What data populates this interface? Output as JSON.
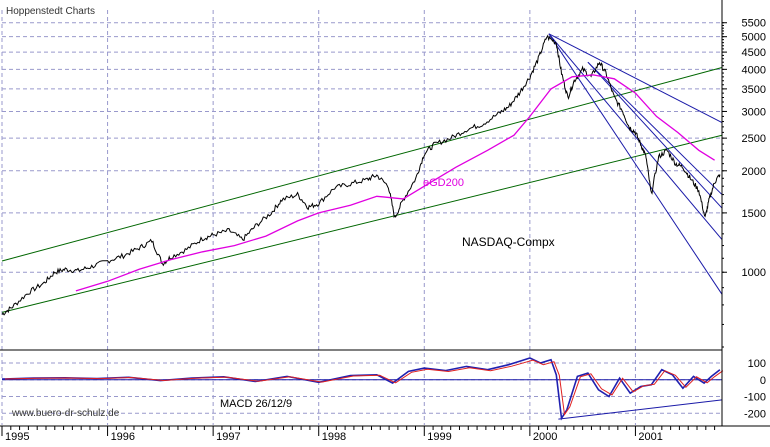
{
  "header": {
    "source_label": "Hoppenstedt Charts"
  },
  "footer": {
    "website": "www.buero-dr-schulz.de"
  },
  "colors": {
    "price": "#000000",
    "ema": "#e000e0",
    "channel": "#006600",
    "trend": "#1a1aa8",
    "grid": "#9999cc",
    "macd": "#2020b0",
    "signal": "#e02020"
  },
  "chart_data": [
    {
      "type": "line",
      "scale": "log",
      "title": "NASDAQ-Compx",
      "yticks": [
        1000,
        1500,
        2000,
        2500,
        3000,
        3500,
        4000,
        4500,
        5000,
        5500
      ],
      "ylim": [
        600,
        6000
      ],
      "x_labels": [
        "1995",
        "1996",
        "1997",
        "1998",
        "1999",
        "2000",
        "2001"
      ],
      "xlim": [
        1995.0,
        2001.82
      ],
      "grid": true,
      "series": [
        {
          "name": "NASDAQ-Compx",
          "x": [
            1995.0,
            1995.1,
            1995.25,
            1995.4,
            1995.5,
            1995.6,
            1995.72,
            1995.85,
            1996.0,
            1996.15,
            1996.3,
            1996.42,
            1996.52,
            1996.6,
            1996.75,
            1996.9,
            1997.0,
            1997.15,
            1997.28,
            1997.4,
            1997.55,
            1997.65,
            1997.8,
            1997.9,
            1998.0,
            1998.15,
            1998.3,
            1998.45,
            1998.55,
            1998.66,
            1998.72,
            1998.8,
            1998.92,
            1999.0,
            1999.1,
            1999.25,
            1999.4,
            1999.55,
            1999.7,
            1999.8,
            1999.9,
            2000.0,
            2000.08,
            2000.16,
            2000.25,
            2000.3,
            2000.36,
            2000.42,
            2000.5,
            2000.58,
            2000.66,
            2000.72,
            2000.8,
            2000.88,
            2000.94,
            2001.0,
            2001.05,
            2001.1,
            2001.15,
            2001.22,
            2001.3,
            2001.38,
            2001.45,
            2001.52,
            2001.6,
            2001.66,
            2001.7,
            2001.75,
            2001.8
          ],
          "y": [
            750,
            790,
            870,
            930,
            1000,
            1020,
            1010,
            1040,
            1080,
            1120,
            1180,
            1240,
            1060,
            1110,
            1170,
            1260,
            1290,
            1330,
            1250,
            1370,
            1500,
            1640,
            1700,
            1560,
            1600,
            1780,
            1830,
            1880,
            1940,
            1800,
            1450,
            1640,
            1900,
            2250,
            2400,
            2500,
            2650,
            2750,
            2950,
            3100,
            3400,
            3800,
            4300,
            5000,
            4800,
            3900,
            3300,
            3700,
            4000,
            3800,
            4200,
            3900,
            3300,
            3000,
            2700,
            2600,
            2400,
            2200,
            1700,
            2200,
            2300,
            2100,
            2050,
            1900,
            1750,
            1450,
            1650,
            1850,
            1950
          ]
        },
        {
          "name": "eGD200",
          "x": [
            1995.7,
            1996.0,
            1996.3,
            1996.6,
            1996.9,
            1997.2,
            1997.5,
            1997.8,
            1998.0,
            1998.3,
            1998.55,
            1998.8,
            1999.0,
            1999.3,
            1999.6,
            1999.85,
            2000.0,
            2000.2,
            2000.4,
            2000.6,
            2000.8,
            2001.0,
            2001.2,
            2001.4,
            2001.6,
            2001.75
          ],
          "y": [
            880,
            940,
            1020,
            1090,
            1150,
            1200,
            1280,
            1420,
            1500,
            1580,
            1680,
            1650,
            1800,
            2050,
            2300,
            2550,
            2900,
            3500,
            3800,
            3850,
            3750,
            3400,
            2900,
            2600,
            2300,
            2150
          ]
        }
      ],
      "annotations": [
        {
          "text": "eGD200"
        }
      ],
      "trendlines": [
        {
          "kind": "channel-upper",
          "x": [
            1995.0,
            2001.82
          ],
          "y": [
            1080,
            4050
          ]
        },
        {
          "kind": "channel-lower",
          "x": [
            1995.0,
            2001.82
          ],
          "y": [
            760,
            2550
          ]
        },
        {
          "kind": "down",
          "x": [
            2000.18,
            2001.82
          ],
          "y": [
            5100,
            2780
          ]
        },
        {
          "kind": "down",
          "x": [
            2000.55,
            2001.82
          ],
          "y": [
            4200,
            1700
          ]
        },
        {
          "kind": "down",
          "x": [
            2000.55,
            2001.82
          ],
          "y": [
            4200,
            1550
          ]
        },
        {
          "kind": "down",
          "x": [
            2000.18,
            2001.82
          ],
          "y": [
            5100,
            1250
          ]
        },
        {
          "kind": "down",
          "x": [
            2000.18,
            2001.82
          ],
          "y": [
            5100,
            860
          ]
        }
      ]
    },
    {
      "type": "line",
      "title": "MACD 26/12/9",
      "yticks": [
        100,
        0,
        -100,
        -200
      ],
      "ylim": [
        -270,
        160
      ],
      "xlim": [
        1995.0,
        2001.82
      ],
      "series": [
        {
          "name": "MACD",
          "x": [
            1995.0,
            1995.3,
            1995.6,
            1995.9,
            1996.2,
            1996.5,
            1996.8,
            1997.1,
            1997.4,
            1997.7,
            1998.0,
            1998.3,
            1998.55,
            1998.7,
            1998.85,
            1999.0,
            1999.2,
            1999.4,
            1999.6,
            1999.8,
            1999.9,
            2000.0,
            2000.1,
            2000.2,
            2000.25,
            2000.3,
            2000.35,
            2000.45,
            2000.55,
            2000.65,
            2000.75,
            2000.85,
            2000.95,
            2001.05,
            2001.15,
            2001.25,
            2001.35,
            2001.45,
            2001.55,
            2001.65,
            2001.72,
            2001.8
          ],
          "y": [
            5,
            10,
            12,
            8,
            15,
            -5,
            10,
            18,
            -10,
            20,
            -15,
            25,
            30,
            -20,
            50,
            70,
            55,
            80,
            60,
            90,
            110,
            130,
            100,
            120,
            30,
            -230,
            -180,
            20,
            40,
            -60,
            -100,
            10,
            -80,
            -40,
            -30,
            60,
            30,
            -50,
            20,
            -20,
            20,
            60
          ]
        }
      ],
      "trendlines": [
        {
          "kind": "support",
          "x": [
            2000.27,
            2001.82
          ],
          "y": [
            -235,
            -120
          ]
        }
      ]
    }
  ]
}
